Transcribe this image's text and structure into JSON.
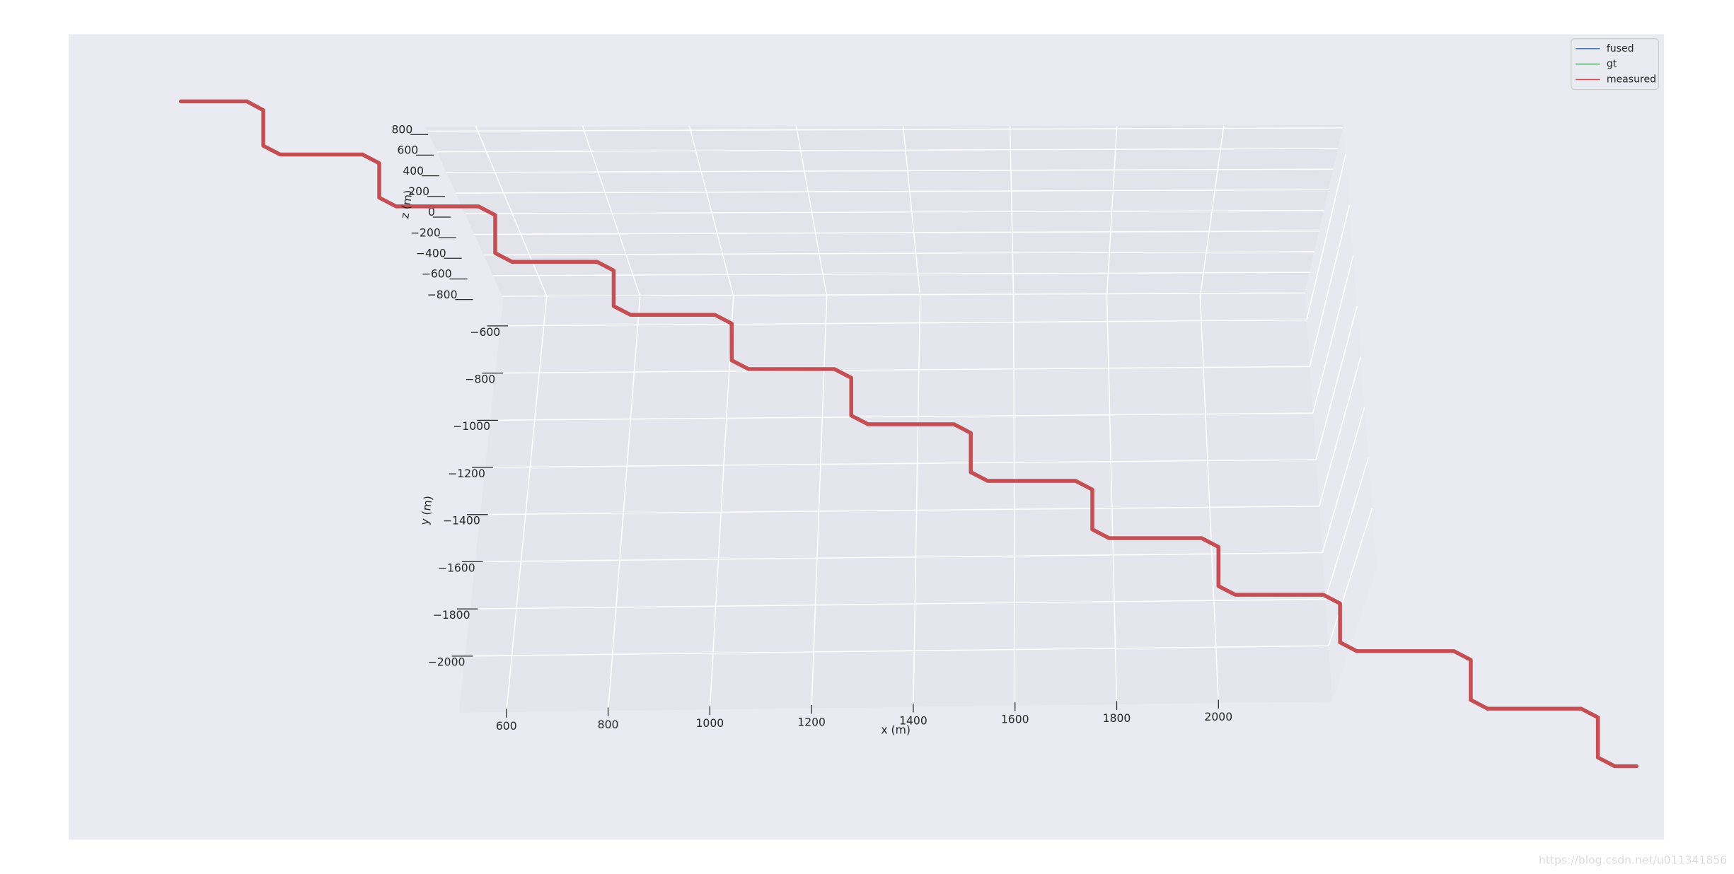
{
  "chart_data": {
    "type": "line3d",
    "xlabel": "x (m)",
    "ylabel": "y (m)",
    "zlabel": "z (m)",
    "xlim": [
      507,
      2224
    ],
    "ylim": [
      -2240,
      -483
    ],
    "zlim": [
      -820,
      840
    ],
    "xticks": [
      600,
      800,
      1000,
      1200,
      1400,
      1600,
      1800,
      2000
    ],
    "yticks": [
      {
        "value": -600,
        "label": "−600"
      },
      {
        "value": -800,
        "label": "−800"
      },
      {
        "value": -1000,
        "label": "−1000"
      },
      {
        "value": -1200,
        "label": "−1200"
      },
      {
        "value": -1400,
        "label": "−1400"
      },
      {
        "value": -1600,
        "label": "−1600"
      },
      {
        "value": -1800,
        "label": "−1800"
      },
      {
        "value": -2000,
        "label": "−2000"
      }
    ],
    "zticks": [
      800,
      600,
      400,
      200,
      0,
      {
        "value": -200,
        "label": "−200"
      },
      {
        "value": -400,
        "label": "−400"
      },
      {
        "value": -600,
        "label": "−600"
      },
      {
        "value": -800,
        "label": "−800"
      }
    ],
    "grid": true,
    "legend": "upper right",
    "x": [
      -40,
      90,
      122,
      122,
      155,
      317,
      350,
      350,
      383,
      545,
      578,
      578,
      611,
      778,
      811,
      811,
      844,
      1010,
      1043,
      1043,
      1076,
      1245,
      1278,
      1278,
      1311,
      1480,
      1513,
      1513,
      1546,
      1719,
      1752,
      1752,
      1785,
      1967,
      2000,
      2000,
      2033,
      2206,
      2239,
      2239,
      2272,
      2463,
      2496,
      2496,
      2529,
      2713,
      2746,
      2746,
      2779,
      2822
    ],
    "series": [
      {
        "name": "fused",
        "color": "#4c72b0"
      },
      {
        "name": "gt",
        "color": "#55a868"
      },
      {
        "name": "measured",
        "color": "#c44e52",
        "values": [
          352,
          352,
          315,
          164,
          127,
          127,
          90,
          -56,
          -93,
          -93,
          -130,
          -291,
          -328,
          -328,
          -365,
          -516,
          -553,
          -553,
          -590,
          -746,
          -783,
          -783,
          -820,
          -980,
          -1017,
          -1017,
          -1054,
          -1220,
          -1257,
          -1257,
          -1294,
          -1463,
          -1500,
          -1500,
          -1537,
          -1703,
          -1740,
          -1740,
          -1777,
          -1942,
          -1979,
          -1979,
          -2016,
          -2186,
          -2223,
          -2223,
          -2260,
          -2430,
          -2467,
          -2467
        ]
      }
    ]
  },
  "watermark": "https://blog.csdn.net/u011341856"
}
